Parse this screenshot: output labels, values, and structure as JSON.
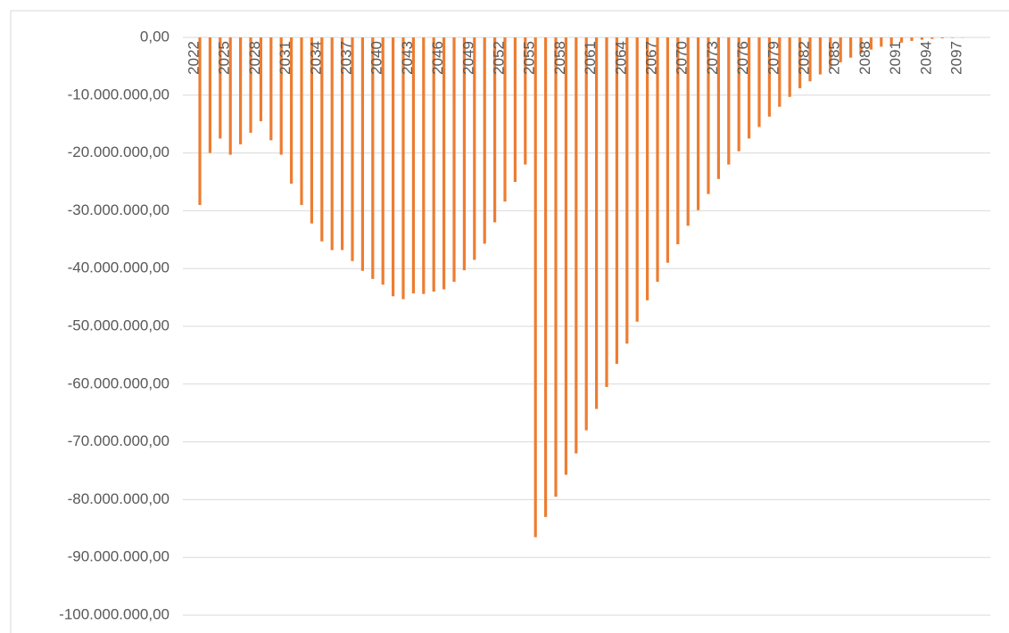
{
  "chart_data": {
    "type": "bar",
    "categories": [
      "2022",
      null,
      null,
      "2025",
      null,
      null,
      "2028",
      null,
      null,
      "2031",
      null,
      null,
      "2034",
      null,
      null,
      "2037",
      null,
      null,
      "2040",
      null,
      null,
      "2043",
      null,
      null,
      "2046",
      null,
      null,
      "2049",
      null,
      null,
      "2052",
      null,
      null,
      "2055",
      null,
      null,
      "2058",
      null,
      null,
      "2061",
      null,
      null,
      "2064",
      null,
      null,
      "2067",
      null,
      null,
      "2070",
      null,
      null,
      "2073",
      null,
      null,
      "2076",
      null,
      null,
      "2079",
      null,
      null,
      "2082",
      null,
      null,
      "2085",
      null,
      null,
      "2088",
      null,
      null,
      "2091",
      null,
      null,
      "2094",
      null,
      null,
      "2097"
    ],
    "values": [
      -29000000,
      -20000000,
      -17500000,
      -20300000,
      -18500000,
      -16500000,
      -14500000,
      -17800000,
      -20300000,
      -25300000,
      -29000000,
      -32200000,
      -35300000,
      -36800000,
      -36800000,
      -38700000,
      -40400000,
      -41800000,
      -42800000,
      -44800000,
      -45300000,
      -44300000,
      -44400000,
      -44000000,
      -43600000,
      -42300000,
      -40300000,
      -38500000,
      -35700000,
      -32000000,
      -28400000,
      -25000000,
      -22000000,
      -86500000,
      -83000000,
      -79500000,
      -75700000,
      -72000000,
      -68000000,
      -64300000,
      -60500000,
      -56500000,
      -53000000,
      -49200000,
      -45500000,
      -42300000,
      -39000000,
      -35800000,
      -32600000,
      -29900000,
      -27100000,
      -24500000,
      -22000000,
      -19700000,
      -17500000,
      -15500000,
      -13700000,
      -12000000,
      -10300000,
      -8800000,
      -7600000,
      -6400000,
      -5300000,
      -4300000,
      -3500000,
      -2800000,
      -2100000,
      -1600000,
      -1200000,
      -900000,
      -600000,
      -400000,
      -250000,
      -150000,
      -80000,
      -40000
    ],
    "color": "#ed7d31",
    "ylim": [
      -100000000,
      0
    ],
    "yticks": [
      {
        "value": 0,
        "label": "0,00"
      },
      {
        "value": -10000000,
        "label": "-10.000.000,00"
      },
      {
        "value": -20000000,
        "label": "-20.000.000,00"
      },
      {
        "value": -30000000,
        "label": "-30.000.000,00"
      },
      {
        "value": -40000000,
        "label": "-40.000.000,00"
      },
      {
        "value": -50000000,
        "label": "-50.000.000,00"
      },
      {
        "value": -60000000,
        "label": "-60.000.000,00"
      },
      {
        "value": -70000000,
        "label": "-70.000.000,00"
      },
      {
        "value": -80000000,
        "label": "-80.000.000,00"
      },
      {
        "value": -90000000,
        "label": "-90.000.000,00"
      },
      {
        "value": -100000000,
        "label": "-100.000.000,00"
      }
    ],
    "grid": true
  }
}
